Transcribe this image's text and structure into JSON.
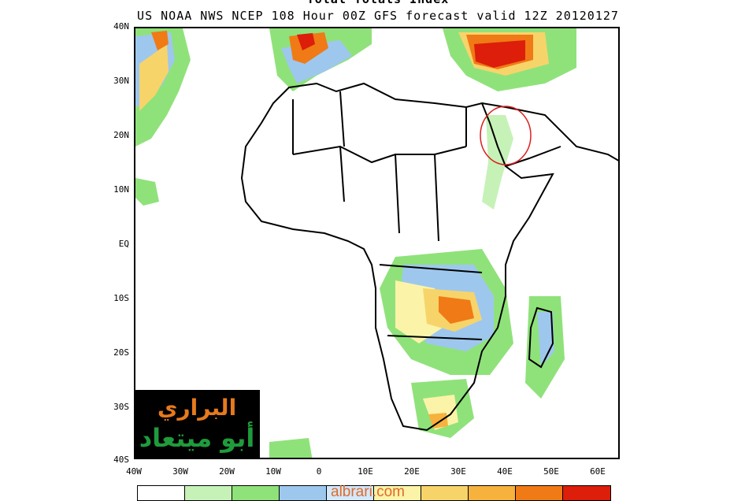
{
  "header": {
    "title": "Total Totals Index",
    "subtitle": "US NOAA NWS NCEP 108 Hour 00Z GFS forecast valid 12Z 20120127"
  },
  "axes": {
    "lat_labels": [
      "40N",
      "30N",
      "20N",
      "10N",
      "EQ",
      "10S",
      "20S",
      "30S",
      "40S"
    ],
    "lon_labels": [
      "40W",
      "30W",
      "20W",
      "10W",
      "0",
      "10E",
      "20E",
      "30E",
      "40E",
      "50E",
      "60E"
    ]
  },
  "colorbar": {
    "colors": [
      "#ffffff",
      "#c6f2b8",
      "#8fe27a",
      "#9ec7ee",
      "#d2e8fb",
      "#fbf3a8",
      "#f7d46a",
      "#f6b23d",
      "#f07a16",
      "#dc1e0a"
    ]
  },
  "watermark": {
    "url": "albrari.com",
    "logo_line1": "البراري",
    "logo_line2": "أبو ميتعاد"
  },
  "annotation": {
    "circle_color": "#dd1e1e"
  }
}
